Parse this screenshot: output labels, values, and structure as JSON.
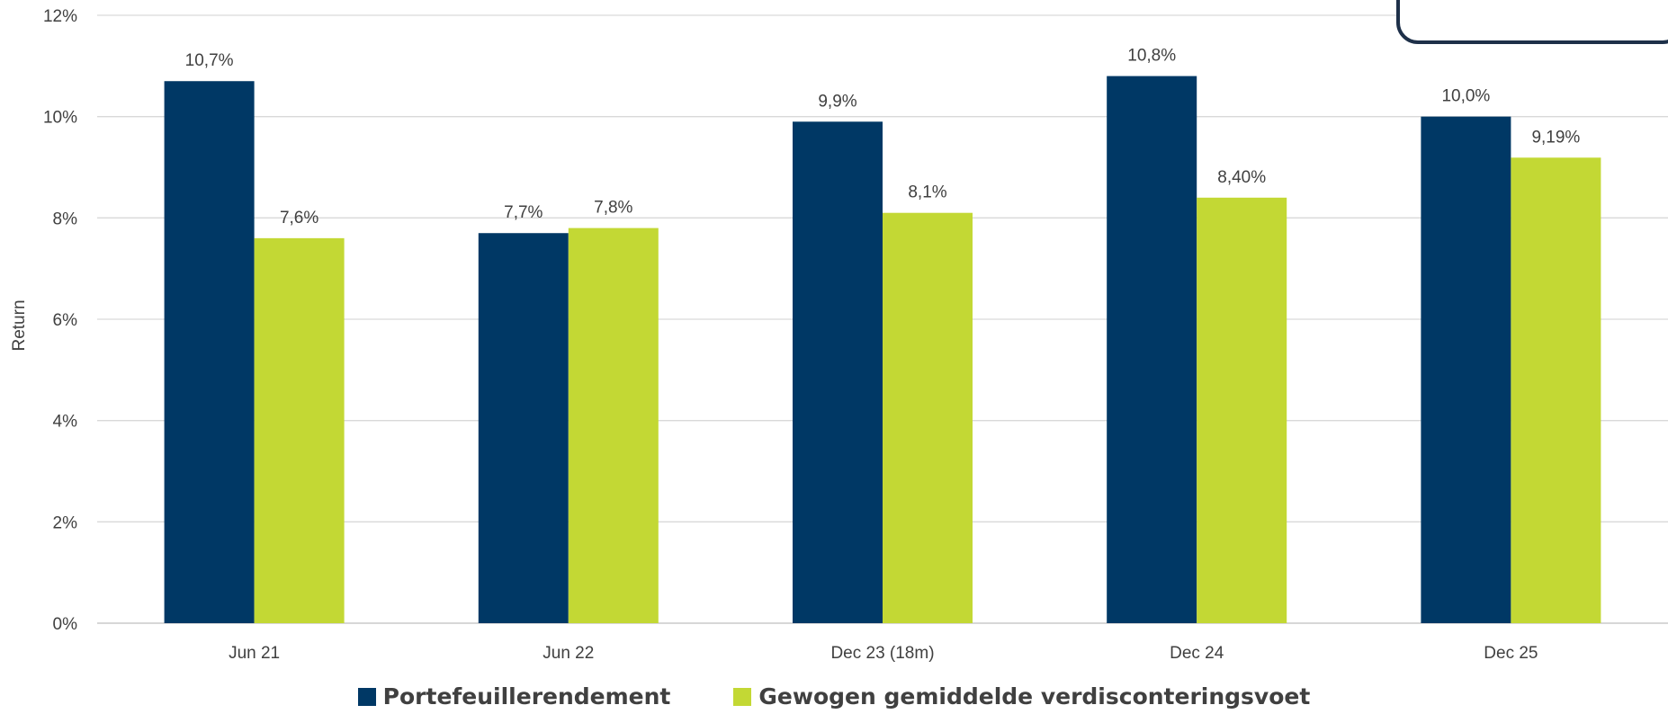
{
  "chart_data": {
    "type": "bar",
    "categories": [
      "Jun 21",
      "Jun 22",
      "Dec 23 (18m)",
      "Dec 24",
      "Dec 25"
    ],
    "series": [
      {
        "name": "Portefeuillerendement",
        "color": "#003865",
        "values": [
          10.7,
          7.7,
          9.9,
          10.8,
          10.0
        ],
        "labels": [
          "10,7%",
          "7,7%",
          "9,9%",
          "10,8%",
          "10,0%"
        ]
      },
      {
        "name": "Gewogen gemiddelde verdisconteringsvoet",
        "color": "#c3d834",
        "values": [
          7.6,
          7.8,
          8.1,
          8.4,
          9.19
        ],
        "labels": [
          "7,6%",
          "7,8%",
          "8,1%",
          "8,40%",
          "9,19%"
        ]
      }
    ],
    "ylabel": "Return",
    "ylim": [
      0,
      12
    ],
    "yticks": [
      0,
      2,
      4,
      6,
      8,
      10,
      12
    ],
    "ytick_labels": [
      "0%",
      "2%",
      "4%",
      "6%",
      "8%",
      "10%",
      "12%"
    ],
    "grid": true,
    "legend_position": "bottom-center"
  }
}
